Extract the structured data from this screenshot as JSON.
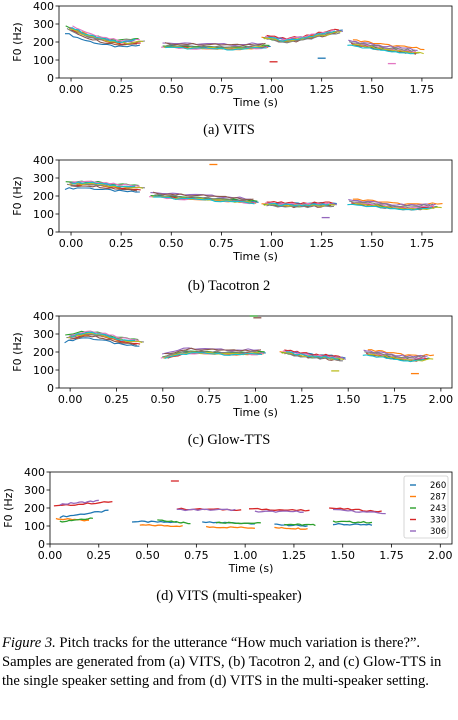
{
  "figure_caption": {
    "label": "Figure 3.",
    "text": " Pitch tracks for the utterance “How much variation is there?”. Samples are generated from (a) VITS, (b) Tacotron 2, and (c) Glow-TTS in the single speaker setting and from (d) VITS in the multi-speaker setting."
  },
  "colors": [
    "#1f77b4",
    "#ff7f0e",
    "#2ca02c",
    "#d62728",
    "#9467bd",
    "#8c564b",
    "#e377c2",
    "#7f7f7f",
    "#bcbd22",
    "#17becf"
  ],
  "chart_data": [
    {
      "type": "line",
      "caption": "(a) VITS",
      "xlabel": "Time (s)",
      "ylabel": "F0 (Hz)",
      "xlim": [
        -0.06,
        1.9
      ],
      "ylim": [
        0,
        400
      ],
      "xticks": [
        "0.00",
        "0.25",
        "0.50",
        "0.75",
        "1.00",
        "1.25",
        "1.50",
        "1.75"
      ],
      "yticks": [
        "0",
        "100",
        "200",
        "300",
        "400"
      ],
      "segments": [
        {
          "x0": 0.0,
          "x1": 0.34,
          "f0": [
            270,
            230,
            205,
            190,
            200
          ]
        },
        {
          "x0": 0.46,
          "x1": 0.98,
          "f0": [
            185,
            180,
            178,
            175,
            185
          ]
        },
        {
          "x0": 0.98,
          "x1": 1.33,
          "f0": [
            235,
            215,
            230,
            250,
            270
          ]
        },
        {
          "x0": 1.4,
          "x1": 1.74,
          "f0": [
            200,
            185,
            170,
            160,
            150
          ]
        }
      ],
      "outliers": [
        {
          "x": 1.25,
          "y": 110
        },
        {
          "x": 1.01,
          "y": 90
        },
        {
          "x": 1.6,
          "y": 80
        }
      ]
    },
    {
      "type": "line",
      "caption": "(b) Tacotron 2",
      "xlabel": "Time (s)",
      "ylabel": "F0 (Hz)",
      "xlim": [
        -0.06,
        1.9
      ],
      "ylim": [
        0,
        400
      ],
      "xticks": [
        "0.00",
        "0.25",
        "0.50",
        "0.75",
        "1.00",
        "1.25",
        "1.50",
        "1.75"
      ],
      "yticks": [
        "0",
        "100",
        "200",
        "300",
        "400"
      ],
      "segments": [
        {
          "x0": 0.0,
          "x1": 0.34,
          "f0": [
            260,
            265,
            255,
            245,
            240
          ]
        },
        {
          "x0": 0.4,
          "x1": 0.92,
          "f0": [
            210,
            200,
            195,
            185,
            175
          ]
        },
        {
          "x0": 0.98,
          "x1": 1.3,
          "f0": [
            165,
            160,
            158,
            160,
            162
          ]
        },
        {
          "x0": 1.4,
          "x1": 1.83,
          "f0": [
            170,
            160,
            145,
            140,
            150
          ]
        }
      ],
      "outliers": [
        {
          "x": 0.71,
          "y": 375
        },
        {
          "x": 1.27,
          "y": 80
        }
      ]
    },
    {
      "type": "line",
      "caption": "(c) Glow-TTS",
      "xlabel": "Time (s)",
      "ylabel": "F0 (Hz)",
      "xlim": [
        -0.06,
        2.06
      ],
      "ylim": [
        0,
        400
      ],
      "xticks": [
        "0.00",
        "0.25",
        "0.50",
        "0.75",
        "1.00",
        "1.25",
        "1.50",
        "1.75",
        "2.00"
      ],
      "yticks": [
        "0",
        "100",
        "200",
        "300",
        "400"
      ],
      "segments": [
        {
          "x0": 0.0,
          "x1": 0.37,
          "f0": [
            275,
            300,
            285,
            260,
            250
          ]
        },
        {
          "x0": 0.5,
          "x1": 1.04,
          "f0": [
            180,
            210,
            205,
            200,
            205
          ]
        },
        {
          "x0": 1.16,
          "x1": 1.46,
          "f0": [
            210,
            195,
            185,
            180,
            170
          ]
        },
        {
          "x0": 1.6,
          "x1": 1.94,
          "f0": [
            200,
            190,
            175,
            165,
            175
          ]
        }
      ],
      "outliers": [
        {
          "x": 0.99,
          "y": 400
        },
        {
          "x": 1.01,
          "y": 390
        },
        {
          "x": 1.43,
          "y": 95
        },
        {
          "x": 1.86,
          "y": 80
        }
      ]
    },
    {
      "type": "line",
      "caption": "(d) VITS (multi-speaker)",
      "xlabel": "Time (s)",
      "ylabel": "F0 (Hz)",
      "xlim": [
        0.0,
        2.06
      ],
      "ylim": [
        0,
        400
      ],
      "xticks": [
        "0.00",
        "0.25",
        "0.50",
        "0.75",
        "1.00",
        "1.25",
        "1.50",
        "1.75",
        "2.00"
      ],
      "yticks": [
        "0",
        "100",
        "200",
        "300",
        "400"
      ],
      "legend_position": "right",
      "series": [
        {
          "name": "260",
          "segments": [
            [
              0.05,
              0.3,
              150,
              185
            ],
            [
              0.42,
              0.65,
              125,
              120
            ],
            [
              0.78,
              1.05,
              120,
              115
            ],
            [
              1.15,
              1.32,
              110,
              100
            ],
            [
              1.45,
              1.65,
              110,
              105
            ]
          ]
        },
        {
          "name": "287",
          "segments": [
            [
              0.03,
              0.2,
              140,
              130
            ],
            [
              0.46,
              0.68,
              105,
              100
            ],
            [
              0.8,
              1.05,
              95,
              90
            ],
            [
              1.15,
              1.32,
              90,
              85
            ]
          ]
        },
        {
          "name": "243",
          "segments": [
            [
              0.05,
              0.22,
              125,
              145
            ],
            [
              0.55,
              0.72,
              135,
              115
            ],
            [
              0.85,
              1.08,
              120,
              115
            ],
            [
              1.2,
              1.36,
              110,
              105
            ],
            [
              1.45,
              1.65,
              125,
              120
            ]
          ]
        },
        {
          "name": "330",
          "segments": [
            [
              0.02,
              0.32,
              210,
              235
            ],
            [
              0.65,
              0.98,
              195,
              190
            ],
            [
              1.02,
              1.33,
              195,
              185
            ],
            [
              1.43,
              1.7,
              200,
              180
            ]
          ]
        },
        {
          "name": "306",
          "segments": [
            [
              0.05,
              0.25,
              220,
              240
            ],
            [
              0.65,
              0.95,
              190,
              190
            ],
            [
              1.05,
              1.3,
              180,
              180
            ],
            [
              1.45,
              1.72,
              190,
              170
            ]
          ]
        }
      ],
      "outliers": [
        {
          "x": 0.64,
          "y": 350
        }
      ]
    }
  ]
}
